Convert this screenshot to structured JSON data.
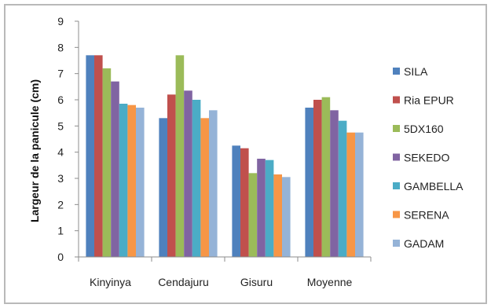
{
  "chart_data": {
    "type": "bar",
    "categories": [
      "Kinyinya",
      "Cendajuru",
      "Gisuru",
      "Moyenne"
    ],
    "xlabel": "",
    "ylabel": "Largeur de la panicule (cm)",
    "ylim": [
      0,
      9
    ],
    "yticks": [
      0,
      1,
      2,
      3,
      4,
      5,
      6,
      7,
      8,
      9
    ],
    "grid": false,
    "legend": "right",
    "series": [
      {
        "name": "SILA",
        "color": "#4F81BD",
        "values": [
          7.7,
          5.3,
          4.25,
          5.7
        ]
      },
      {
        "name": "Ria EPUR",
        "color": "#C0504D",
        "values": [
          7.7,
          6.2,
          4.15,
          6.0
        ]
      },
      {
        "name": "5DX160",
        "color": "#9BBB59",
        "values": [
          7.2,
          7.7,
          3.2,
          6.1
        ]
      },
      {
        "name": "SEKEDO",
        "color": "#8064A2",
        "values": [
          6.7,
          6.35,
          3.75,
          5.6
        ]
      },
      {
        "name": "GAMBELLA",
        "color": "#4BACC6",
        "values": [
          5.85,
          6.0,
          3.7,
          5.2
        ]
      },
      {
        "name": "SERENA",
        "color": "#F79646",
        "values": [
          5.8,
          5.3,
          3.15,
          4.75
        ]
      },
      {
        "name": "GADAM",
        "color": "#95B3D7",
        "values": [
          5.7,
          5.6,
          3.05,
          4.75
        ]
      }
    ]
  }
}
